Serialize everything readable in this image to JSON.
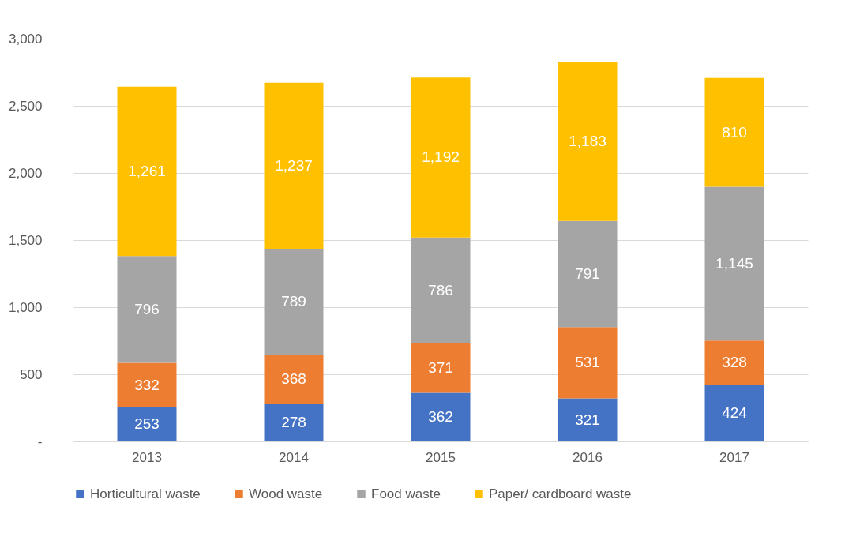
{
  "chart_data": {
    "type": "bar",
    "stacked": true,
    "categories": [
      "2013",
      "2014",
      "2015",
      "2016",
      "2017"
    ],
    "series": [
      {
        "name": "Horticultural waste",
        "color": "#4472c4",
        "values": [
          253,
          278,
          362,
          321,
          424
        ],
        "value_labels": [
          "253",
          "278",
          "362",
          "321",
          "424"
        ]
      },
      {
        "name": "Wood waste",
        "color": "#ed7d31",
        "values": [
          332,
          368,
          371,
          531,
          328
        ],
        "value_labels": [
          "332",
          "368",
          "371",
          "531",
          "328"
        ]
      },
      {
        "name": "Food waste",
        "color": "#a5a5a5",
        "values": [
          796,
          789,
          786,
          791,
          1145
        ],
        "value_labels": [
          "796",
          "789",
          "786",
          "791",
          "1,145"
        ]
      },
      {
        "name": "Paper/ cardboard waste",
        "color": "#ffc000",
        "values": [
          1261,
          1237,
          1192,
          1183,
          810
        ],
        "value_labels": [
          "1,261",
          "1,237",
          "1,192",
          "1,183",
          "810"
        ]
      }
    ],
    "ylim": [
      0,
      3000
    ],
    "yticks": [
      {
        "value": 0,
        "label": "-"
      },
      500,
      {
        "value": 1000,
        "label": "1,000"
      },
      {
        "value": 1500,
        "label": "1,500"
      },
      {
        "value": 2000,
        "label": "2,000"
      },
      {
        "value": 2500,
        "label": "2,500"
      },
      {
        "value": 3000,
        "label": "3,000"
      }
    ],
    "grid": "y",
    "legend": "bottom"
  }
}
